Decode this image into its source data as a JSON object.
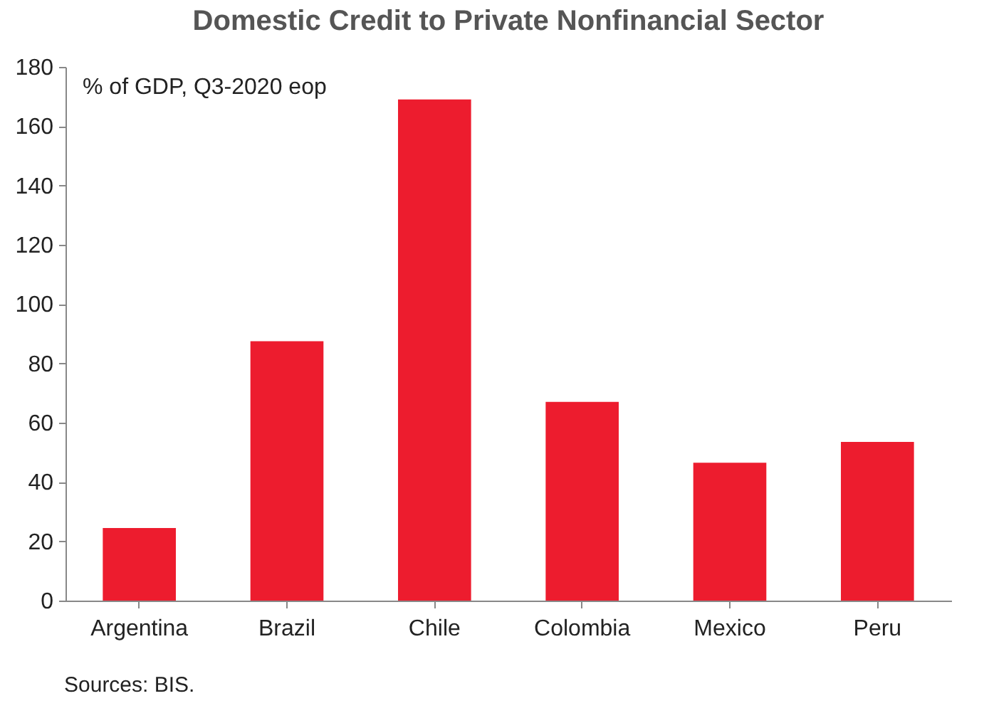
{
  "chart_data": {
    "type": "bar",
    "title": "Domestic Credit to Private Nonfinancial Sector",
    "categories": [
      "Argentina",
      "Brazil",
      "Chile",
      "Colombia",
      "Mexico",
      "Peru"
    ],
    "values": [
      24.5,
      87.5,
      169,
      67,
      46.5,
      53.5
    ],
    "color": "#ed1c2e",
    "ylim": [
      0,
      180
    ],
    "yticks": [
      0,
      20,
      40,
      60,
      80,
      100,
      120,
      140,
      160,
      180
    ],
    "grid": false,
    "annotations": [
      "% of GDP, Q3-2020 eop",
      "Sources: BIS."
    ]
  }
}
